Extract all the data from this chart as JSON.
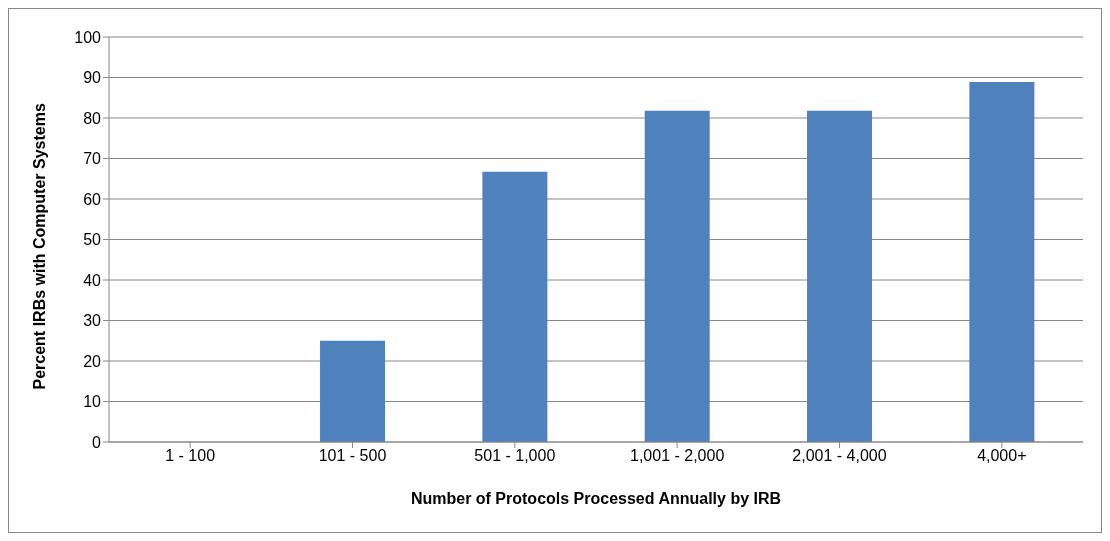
{
  "chart_data": {
    "type": "bar",
    "xlabel": "Number of Protocols Processed Annually by IRB",
    "ylabel": "Percent IRBs with Computer Systems",
    "categories": [
      "1 - 100",
      "101 - 500",
      "501 - 1,000",
      "1,001 - 2,000",
      "2,001 - 4,000",
      "4,000+"
    ],
    "values": [
      0,
      25,
      66.7,
      81.8,
      81.8,
      88.9
    ],
    "color": "#4f81bd",
    "ylim": [
      0,
      100
    ],
    "yticks": [
      0,
      10,
      20,
      30,
      40,
      50,
      60,
      70,
      80,
      90,
      100
    ],
    "grid": "y"
  }
}
